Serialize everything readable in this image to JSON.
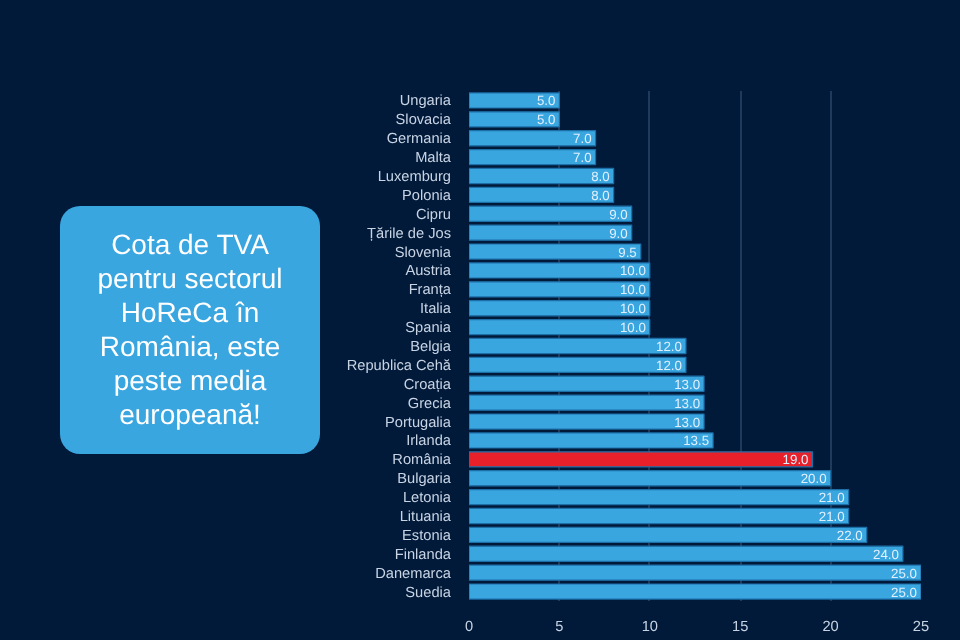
{
  "chart_data": {
    "type": "bar",
    "orientation": "horizontal",
    "title": "Cota de TVA pentru sectorul HoReCa în România, este peste media europeană!",
    "categories": [
      "Ungaria",
      "Slovacia",
      "Germania",
      "Malta",
      "Luxemburg",
      "Polonia",
      "Cipru",
      "Țările de Jos",
      "Slovenia",
      "Austria",
      "Franța",
      "Italia",
      "Spania",
      "Belgia",
      "Republica Cehă",
      "Croația",
      "Grecia",
      "Portugalia",
      "Irlanda",
      "România",
      "Bulgaria",
      "Letonia",
      "Lituania",
      "Estonia",
      "Finlanda",
      "Danemarca",
      "Suedia"
    ],
    "values": [
      5,
      5,
      7,
      7,
      8,
      8,
      9,
      9,
      9.5,
      10,
      10,
      10,
      10,
      12,
      12,
      13,
      13,
      13,
      13.5,
      19,
      20,
      21,
      21,
      22,
      24,
      25,
      25
    ],
    "value_labels": [
      "5.0",
      "5.0",
      "7.0",
      "7.0",
      "8.0",
      "8.0",
      "9.0",
      "9.0",
      "9.5",
      "10.0",
      "10.0",
      "10.0",
      "10.0",
      "12.0",
      "12.0",
      "13.0",
      "13.0",
      "13.0",
      "13.5",
      "19.0",
      "20.0",
      "21.0",
      "21.0",
      "22.0",
      "24.0",
      "25.0",
      "25.0"
    ],
    "colors": [
      "#3aa6e0",
      "#3aa6e0",
      "#3aa6e0",
      "#3aa6e0",
      "#3aa6e0",
      "#3aa6e0",
      "#3aa6e0",
      "#3aa6e0",
      "#3aa6e0",
      "#3aa6e0",
      "#3aa6e0",
      "#3aa6e0",
      "#3aa6e0",
      "#3aa6e0",
      "#3aa6e0",
      "#3aa6e0",
      "#3aa6e0",
      "#3aa6e0",
      "#3aa6e0",
      "#e8202a",
      "#3aa6e0",
      "#3aa6e0",
      "#3aa6e0",
      "#3aa6e0",
      "#3aa6e0",
      "#3aa6e0",
      "#3aa6e0"
    ],
    "xlim": [
      0,
      25
    ],
    "xticks": [
      0,
      5,
      10,
      15,
      20,
      25
    ],
    "grid": "x"
  }
}
